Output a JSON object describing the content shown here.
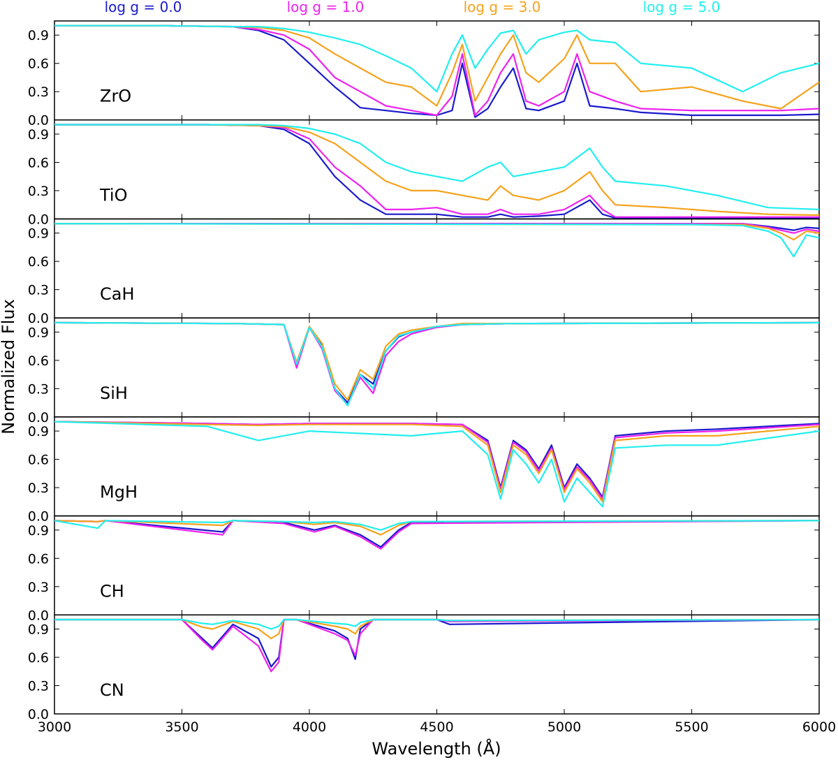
{
  "chart_data": {
    "type": "line",
    "xlabel": "Wavelength (Å)",
    "ylabel": "Normalized Flux",
    "xlim": [
      3000,
      6000
    ],
    "ylim": [
      0.0,
      1.05
    ],
    "x_ticks": [
      3000,
      3500,
      4000,
      4500,
      5000,
      5500,
      6000
    ],
    "x_tick_labels": [
      "3000",
      "3500",
      "4000",
      "4500",
      "5000",
      "5500",
      "6000"
    ],
    "y_ticks": [
      0.0,
      0.3,
      0.6,
      0.9
    ],
    "y_tick_labels": [
      "0.0",
      "0.3",
      "0.6",
      "0.9"
    ],
    "grid": false,
    "legend_placement": "top",
    "series": [
      {
        "name": "log g = 0.0",
        "color": "#1a1acc"
      },
      {
        "name": "log g = 1.0",
        "color": "#ee22ee"
      },
      {
        "name": "log g = 3.0",
        "color": "#f5a21c"
      },
      {
        "name": "log g = 5.0",
        "color": "#22eeee"
      }
    ],
    "panels": [
      {
        "label": "ZrO",
        "x": [
          3000,
          3400,
          3700,
          3800,
          3900,
          4000,
          4100,
          4200,
          4300,
          4400,
          4500,
          4560,
          4600,
          4650,
          4700,
          4750,
          4800,
          4850,
          4900,
          5000,
          5050,
          5100,
          5200,
          5300,
          5500,
          5700,
          5850,
          6000
        ],
        "values": [
          [
            1.0,
            1.0,
            0.99,
            0.95,
            0.85,
            0.6,
            0.35,
            0.13,
            0.1,
            0.07,
            0.05,
            0.1,
            0.6,
            0.03,
            0.12,
            0.35,
            0.55,
            0.12,
            0.1,
            0.2,
            0.6,
            0.15,
            0.12,
            0.08,
            0.05,
            0.05,
            0.05,
            0.06
          ],
          [
            1.0,
            1.0,
            0.99,
            0.96,
            0.9,
            0.75,
            0.45,
            0.3,
            0.15,
            0.1,
            0.05,
            0.25,
            0.7,
            0.05,
            0.2,
            0.5,
            0.7,
            0.2,
            0.15,
            0.3,
            0.7,
            0.3,
            0.2,
            0.12,
            0.1,
            0.1,
            0.1,
            0.12
          ],
          [
            1.0,
            1.0,
            0.99,
            0.98,
            0.95,
            0.87,
            0.7,
            0.55,
            0.4,
            0.35,
            0.15,
            0.5,
            0.8,
            0.2,
            0.45,
            0.7,
            0.9,
            0.5,
            0.4,
            0.65,
            0.9,
            0.6,
            0.6,
            0.3,
            0.35,
            0.2,
            0.12,
            0.4
          ],
          [
            1.0,
            1.0,
            0.99,
            0.99,
            0.97,
            0.93,
            0.87,
            0.8,
            0.68,
            0.55,
            0.3,
            0.7,
            0.9,
            0.55,
            0.75,
            0.92,
            0.95,
            0.7,
            0.85,
            0.93,
            0.95,
            0.85,
            0.82,
            0.6,
            0.55,
            0.3,
            0.5,
            0.6
          ]
        ]
      },
      {
        "label": "TiO",
        "x": [
          3000,
          3600,
          3800,
          3900,
          4000,
          4100,
          4200,
          4300,
          4400,
          4500,
          4600,
          4700,
          4750,
          4800,
          4900,
          5000,
          5100,
          5150,
          5200,
          5400,
          5600,
          5800,
          6000
        ],
        "values": [
          [
            1.0,
            1.0,
            0.99,
            0.95,
            0.8,
            0.45,
            0.2,
            0.05,
            0.05,
            0.05,
            0.02,
            0.02,
            0.05,
            0.02,
            0.03,
            0.05,
            0.2,
            0.05,
            0.01,
            0.01,
            0.01,
            0.01,
            0.01
          ],
          [
            1.0,
            1.0,
            0.99,
            0.97,
            0.85,
            0.55,
            0.35,
            0.1,
            0.1,
            0.12,
            0.05,
            0.05,
            0.1,
            0.05,
            0.05,
            0.1,
            0.25,
            0.1,
            0.02,
            0.02,
            0.02,
            0.02,
            0.02
          ],
          [
            1.0,
            1.0,
            0.99,
            0.98,
            0.92,
            0.8,
            0.6,
            0.4,
            0.3,
            0.3,
            0.25,
            0.2,
            0.35,
            0.25,
            0.2,
            0.3,
            0.5,
            0.3,
            0.15,
            0.12,
            0.08,
            0.05,
            0.04
          ],
          [
            1.0,
            1.0,
            1.0,
            0.99,
            0.96,
            0.9,
            0.8,
            0.6,
            0.5,
            0.45,
            0.4,
            0.55,
            0.6,
            0.45,
            0.5,
            0.55,
            0.75,
            0.55,
            0.4,
            0.35,
            0.25,
            0.12,
            0.1
          ]
        ]
      },
      {
        "label": "CaH",
        "x": [
          3000,
          5500,
          5700,
          5800,
          5850,
          5900,
          5950,
          6000
        ],
        "values": [
          [
            1.0,
            1.0,
            1.0,
            0.97,
            0.95,
            0.93,
            0.96,
            0.95
          ],
          [
            1.0,
            1.0,
            1.0,
            0.96,
            0.93,
            0.9,
            0.94,
            0.92
          ],
          [
            1.0,
            0.99,
            0.99,
            0.95,
            0.9,
            0.83,
            0.92,
            0.9
          ],
          [
            1.0,
            0.99,
            0.98,
            0.92,
            0.85,
            0.65,
            0.88,
            0.85
          ]
        ]
      },
      {
        "label": "SiH",
        "x": [
          3000,
          3700,
          3900,
          3950,
          4000,
          4050,
          4100,
          4150,
          4200,
          4250,
          4300,
          4350,
          4400,
          4500,
          4600,
          4800,
          6000
        ],
        "values": [
          [
            1.0,
            0.99,
            0.98,
            0.55,
            0.95,
            0.75,
            0.3,
            0.15,
            0.45,
            0.35,
            0.7,
            0.85,
            0.9,
            0.95,
            0.98,
            0.99,
            1.0
          ],
          [
            1.0,
            0.99,
            0.98,
            0.52,
            0.95,
            0.72,
            0.28,
            0.13,
            0.42,
            0.25,
            0.65,
            0.8,
            0.88,
            0.95,
            0.98,
            0.99,
            1.0
          ],
          [
            1.0,
            0.99,
            0.98,
            0.58,
            0.96,
            0.78,
            0.35,
            0.18,
            0.5,
            0.4,
            0.75,
            0.88,
            0.92,
            0.96,
            0.99,
            0.99,
            1.0
          ],
          [
            1.0,
            0.99,
            0.98,
            0.56,
            0.95,
            0.74,
            0.3,
            0.12,
            0.45,
            0.3,
            0.7,
            0.86,
            0.9,
            0.96,
            0.98,
            0.99,
            1.0
          ]
        ]
      },
      {
        "label": "MgH",
        "x": [
          3000,
          3600,
          3800,
          4000,
          4400,
          4600,
          4700,
          4750,
          4800,
          4850,
          4900,
          4950,
          5000,
          5050,
          5100,
          5150,
          5200,
          5400,
          5600,
          6000
        ],
        "values": [
          [
            1.0,
            0.98,
            0.97,
            0.98,
            0.98,
            0.97,
            0.8,
            0.3,
            0.8,
            0.7,
            0.5,
            0.75,
            0.3,
            0.55,
            0.4,
            0.2,
            0.85,
            0.9,
            0.92,
            0.98
          ],
          [
            1.0,
            0.98,
            0.97,
            0.98,
            0.98,
            0.97,
            0.78,
            0.28,
            0.78,
            0.68,
            0.48,
            0.72,
            0.28,
            0.52,
            0.38,
            0.18,
            0.83,
            0.88,
            0.9,
            0.97
          ],
          [
            1.0,
            0.97,
            0.96,
            0.97,
            0.97,
            0.95,
            0.75,
            0.25,
            0.75,
            0.65,
            0.45,
            0.7,
            0.25,
            0.5,
            0.35,
            0.15,
            0.8,
            0.85,
            0.85,
            0.95
          ],
          [
            1.0,
            0.95,
            0.8,
            0.9,
            0.85,
            0.9,
            0.65,
            0.18,
            0.7,
            0.55,
            0.35,
            0.6,
            0.15,
            0.4,
            0.25,
            0.1,
            0.72,
            0.75,
            0.75,
            0.9
          ]
        ]
      },
      {
        "label": "CH",
        "x": [
          3000,
          3170,
          3200,
          3660,
          3700,
          3900,
          4020,
          4100,
          4200,
          4280,
          4350,
          4400,
          6000
        ],
        "values": [
          [
            1.0,
            0.99,
            1.0,
            0.88,
            1.0,
            0.98,
            0.9,
            0.95,
            0.85,
            0.72,
            0.9,
            0.98,
            1.0
          ],
          [
            1.0,
            0.99,
            1.0,
            0.85,
            1.0,
            0.97,
            0.88,
            0.94,
            0.83,
            0.7,
            0.88,
            0.97,
            1.0
          ],
          [
            1.0,
            0.99,
            1.0,
            0.95,
            1.0,
            0.99,
            0.96,
            0.98,
            0.94,
            0.85,
            0.95,
            0.99,
            1.0
          ],
          [
            1.0,
            0.92,
            1.0,
            0.98,
            1.0,
            0.99,
            0.98,
            0.99,
            0.96,
            0.9,
            0.97,
            0.99,
            1.0
          ]
        ]
      },
      {
        "label": "CN",
        "x": [
          3000,
          3500,
          3580,
          3620,
          3700,
          3800,
          3850,
          3880,
          3900,
          3950,
          4100,
          4150,
          4180,
          4200,
          4250,
          4500,
          4550,
          6000
        ],
        "values": [
          [
            1.0,
            1.0,
            0.8,
            0.7,
            0.95,
            0.8,
            0.5,
            0.6,
            1.0,
            1.0,
            0.88,
            0.8,
            0.58,
            0.9,
            1.0,
            1.0,
            0.95,
            1.0
          ],
          [
            1.0,
            1.0,
            0.78,
            0.68,
            0.93,
            0.72,
            0.45,
            0.55,
            1.0,
            1.0,
            0.85,
            0.78,
            0.62,
            0.85,
            1.0,
            1.0,
            0.98,
            1.0
          ],
          [
            1.0,
            1.0,
            0.92,
            0.9,
            0.98,
            0.9,
            0.8,
            0.85,
            1.0,
            1.0,
            0.93,
            0.9,
            0.85,
            0.93,
            1.0,
            1.0,
            0.99,
            1.0
          ],
          [
            1.0,
            1.0,
            0.96,
            0.95,
            0.99,
            0.95,
            0.9,
            0.93,
            1.0,
            1.0,
            0.96,
            0.95,
            0.93,
            0.97,
            1.0,
            1.0,
            0.99,
            1.0
          ]
        ]
      }
    ]
  }
}
